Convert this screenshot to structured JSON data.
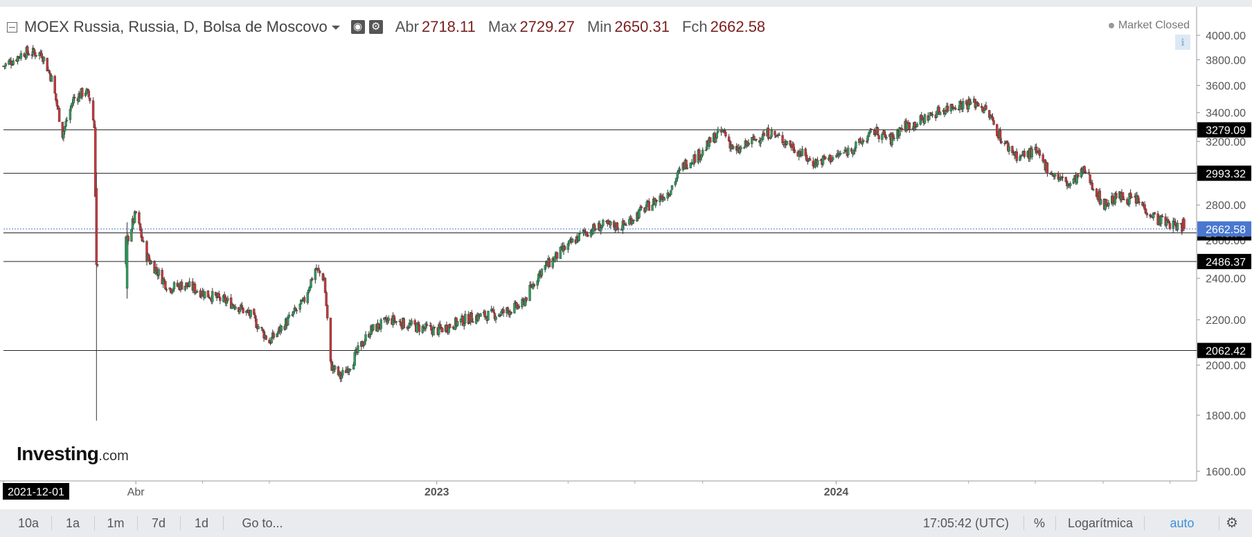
{
  "header": {
    "symbol": "MOEX Russia, Russia, D, Bolsa de Moscovo",
    "open_label": "Abr",
    "open_value": "2718.11",
    "high_label": "Max",
    "high_value": "2729.27",
    "low_label": "Min",
    "low_value": "2650.31",
    "close_label": "Fch",
    "close_value": "2662.58",
    "eye_icon": "eye-icon",
    "gear_icon": "gear-icon"
  },
  "status": {
    "market": "Market Closed",
    "info_icon": "info-icon"
  },
  "logo": {
    "main": "Investing",
    "suffix": ".com"
  },
  "toolbar": {
    "ranges": [
      "10a",
      "1a",
      "1m",
      "7d",
      "1d"
    ],
    "goto": "Go to...",
    "time": "17:05:42 (UTC)",
    "percent": "%",
    "log": "Logarítmica",
    "auto": "auto",
    "settings_icon": "gear-icon"
  },
  "colors": {
    "up": "#2e9e5e",
    "down": "#c8373a",
    "hline": "#222222",
    "current": "#4a78d0",
    "label_bg": "#000000"
  },
  "chart_data": {
    "type": "candlestick",
    "scale": "log",
    "ylim": [
      1520,
      4100
    ],
    "y_ticks": [
      "4000.00",
      "3800.00",
      "3600.00",
      "3400.00",
      "3200.00",
      "3000.00",
      "2800.00",
      "2600.00",
      "2400.00",
      "2200.00",
      "2000.00",
      "1800.00",
      "1600.00"
    ],
    "x_labels": [
      {
        "text": "2021-12-01",
        "date": "2021-12-01",
        "highlight": true
      },
      {
        "text": "Abr",
        "date": "2022-04-01"
      },
      {
        "text": "2023",
        "date": "2023-01-01"
      },
      {
        "text": "2024",
        "date": "2024-01-01"
      }
    ],
    "x_start": "2021-12-01",
    "x_end": "2024-11-14",
    "horizontal_lines": [
      "3279.09",
      "2993.32",
      "2640.76",
      "2486.37",
      "2062.42"
    ],
    "current_price": "2662.58",
    "price_path": [
      [
        "2021-12-01",
        3750
      ],
      [
        "2021-12-10",
        3800
      ],
      [
        "2021-12-20",
        3860
      ],
      [
        "2022-01-05",
        3850
      ],
      [
        "2022-01-14",
        3650
      ],
      [
        "2022-01-24",
        3250
      ],
      [
        "2022-02-03",
        3500
      ],
      [
        "2022-02-14",
        3560
      ],
      [
        "2022-02-18",
        3500
      ],
      [
        "2022-02-22",
        3300
      ],
      [
        "2022-02-24",
        2450
      ],
      [
        "2022-03-24",
        2600
      ],
      [
        "2022-04-01",
        2750
      ],
      [
        "2022-04-10",
        2520
      ],
      [
        "2022-04-20",
        2440
      ],
      [
        "2022-05-01",
        2350
      ],
      [
        "2022-05-15",
        2370
      ],
      [
        "2022-06-01",
        2330
      ],
      [
        "2022-06-15",
        2300
      ],
      [
        "2022-07-01",
        2270
      ],
      [
        "2022-07-15",
        2220
      ],
      [
        "2022-08-01",
        2100
      ],
      [
        "2022-08-15",
        2180
      ],
      [
        "2022-09-01",
        2280
      ],
      [
        "2022-09-12",
        2450
      ],
      [
        "2022-09-20",
        2400
      ],
      [
        "2022-09-26",
        2000
      ],
      [
        "2022-10-05",
        1950
      ],
      [
        "2022-10-15",
        2010
      ],
      [
        "2022-11-01",
        2150
      ],
      [
        "2022-11-20",
        2200
      ],
      [
        "2022-12-10",
        2170
      ],
      [
        "2023-01-01",
        2150
      ],
      [
        "2023-02-01",
        2210
      ],
      [
        "2023-03-01",
        2230
      ],
      [
        "2023-03-20",
        2270
      ],
      [
        "2023-04-05",
        2430
      ],
      [
        "2023-04-25",
        2540
      ],
      [
        "2023-05-15",
        2640
      ],
      [
        "2023-06-01",
        2680
      ],
      [
        "2023-06-20",
        2680
      ],
      [
        "2023-07-10",
        2780
      ],
      [
        "2023-08-01",
        2880
      ],
      [
        "2023-08-15",
        3050
      ],
      [
        "2023-09-01",
        3130
      ],
      [
        "2023-09-10",
        3220
      ],
      [
        "2023-09-20",
        3270
      ],
      [
        "2023-10-01",
        3120
      ],
      [
        "2023-10-15",
        3200
      ],
      [
        "2023-11-01",
        3260
      ],
      [
        "2023-11-20",
        3180
      ],
      [
        "2023-12-10",
        3060
      ],
      [
        "2024-01-01",
        3100
      ],
      [
        "2024-01-20",
        3170
      ],
      [
        "2024-02-05",
        3270
      ],
      [
        "2024-02-20",
        3210
      ],
      [
        "2024-03-01",
        3300
      ],
      [
        "2024-03-15",
        3330
      ],
      [
        "2024-04-01",
        3400
      ],
      [
        "2024-04-20",
        3460
      ],
      [
        "2024-05-10",
        3470
      ],
      [
        "2024-05-20",
        3380
      ],
      [
        "2024-06-01",
        3200
      ],
      [
        "2024-06-15",
        3100
      ],
      [
        "2024-07-01",
        3130
      ],
      [
        "2024-07-15",
        3000
      ],
      [
        "2024-08-01",
        2920
      ],
      [
        "2024-08-15",
        3010
      ],
      [
        "2024-09-01",
        2800
      ],
      [
        "2024-09-15",
        2850
      ],
      [
        "2024-10-01",
        2830
      ],
      [
        "2024-10-20",
        2720
      ],
      [
        "2024-11-14",
        2662.58
      ]
    ]
  }
}
